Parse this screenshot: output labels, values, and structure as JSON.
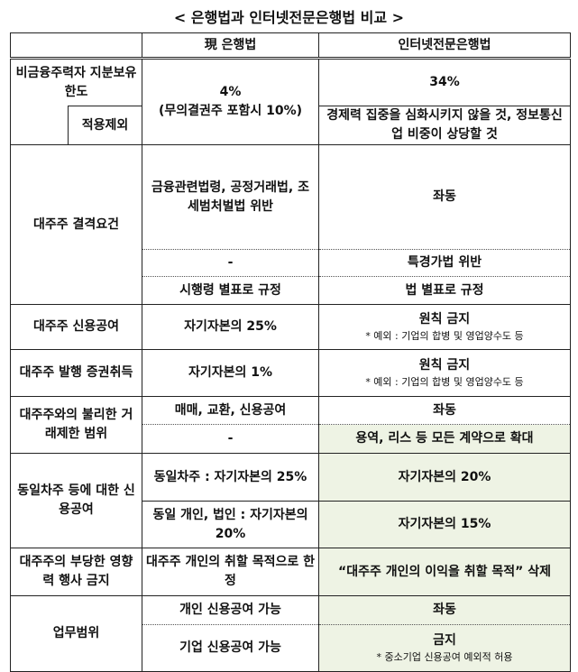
{
  "title": "< 은행법과 인터넷전문은행법 비교 >",
  "header": {
    "col1": "",
    "col2": "現 은행법",
    "col3": "인터넷전문은행법"
  },
  "rows": {
    "r1": {
      "label": "비금융주력자 지분보유 한도",
      "sub": "적용제외",
      "current_main": "4%",
      "current_sub": "(무의결권주 포함시 10%)",
      "internet": "34%",
      "internet_sub": "경제력 집중을 심화시키지 않을 것, 정보통신업 비중이 상당할 것"
    },
    "r2": {
      "label": "대주주 결격요건",
      "current": [
        "금융관련법령, 공정거래법, 조세범처벌법 위반",
        "-",
        "시행령 별표로 규정"
      ],
      "internet": [
        "좌동",
        "특경가법 위반",
        "법 별표로 규정"
      ]
    },
    "r3": {
      "label": "대주주 신용공여",
      "current": "자기자본의 25%",
      "internet": "원칙 금지",
      "note": "* 예외 : 기업의 합병 및 영업양수도 등"
    },
    "r4": {
      "label": "대주주 발행 증권취득",
      "current": "자기자본의 1%",
      "internet": "원칙 금지",
      "note": "* 예외 : 기업의 합병 및 영업양수도 등"
    },
    "r5": {
      "label": "대주주와의 불리한 거래제한 범위",
      "current": [
        "매매, 교환, 신용공여",
        "-"
      ],
      "internet": [
        "좌동",
        "용역, 리스 등 모든 계약으로 확대"
      ]
    },
    "r6": {
      "label": "동일차주 등에 대한 신용공여",
      "current": [
        "동일차주 : 자기자본의 25%",
        "동일 개인, 법인 : 자기자본의 20%"
      ],
      "internet": [
        "자기자본의 20%",
        "자기자본의 15%"
      ]
    },
    "r7": {
      "label": "대주주의 부당한 영향력 행사 금지",
      "current": "대주주 개인의 취할 목적으로 한정",
      "internet": "“대주주 개인의 이익을 취할 목적” 삭제"
    },
    "r8": {
      "label": "업무범위",
      "current": [
        "개인 신용공여 가능",
        "기업 신용공여 가능"
      ],
      "internet": [
        "좌동",
        "금지"
      ],
      "note": "* 중소기업 신용공여 예외적 허용"
    }
  },
  "colors": {
    "highlight": "#eef3e4"
  }
}
